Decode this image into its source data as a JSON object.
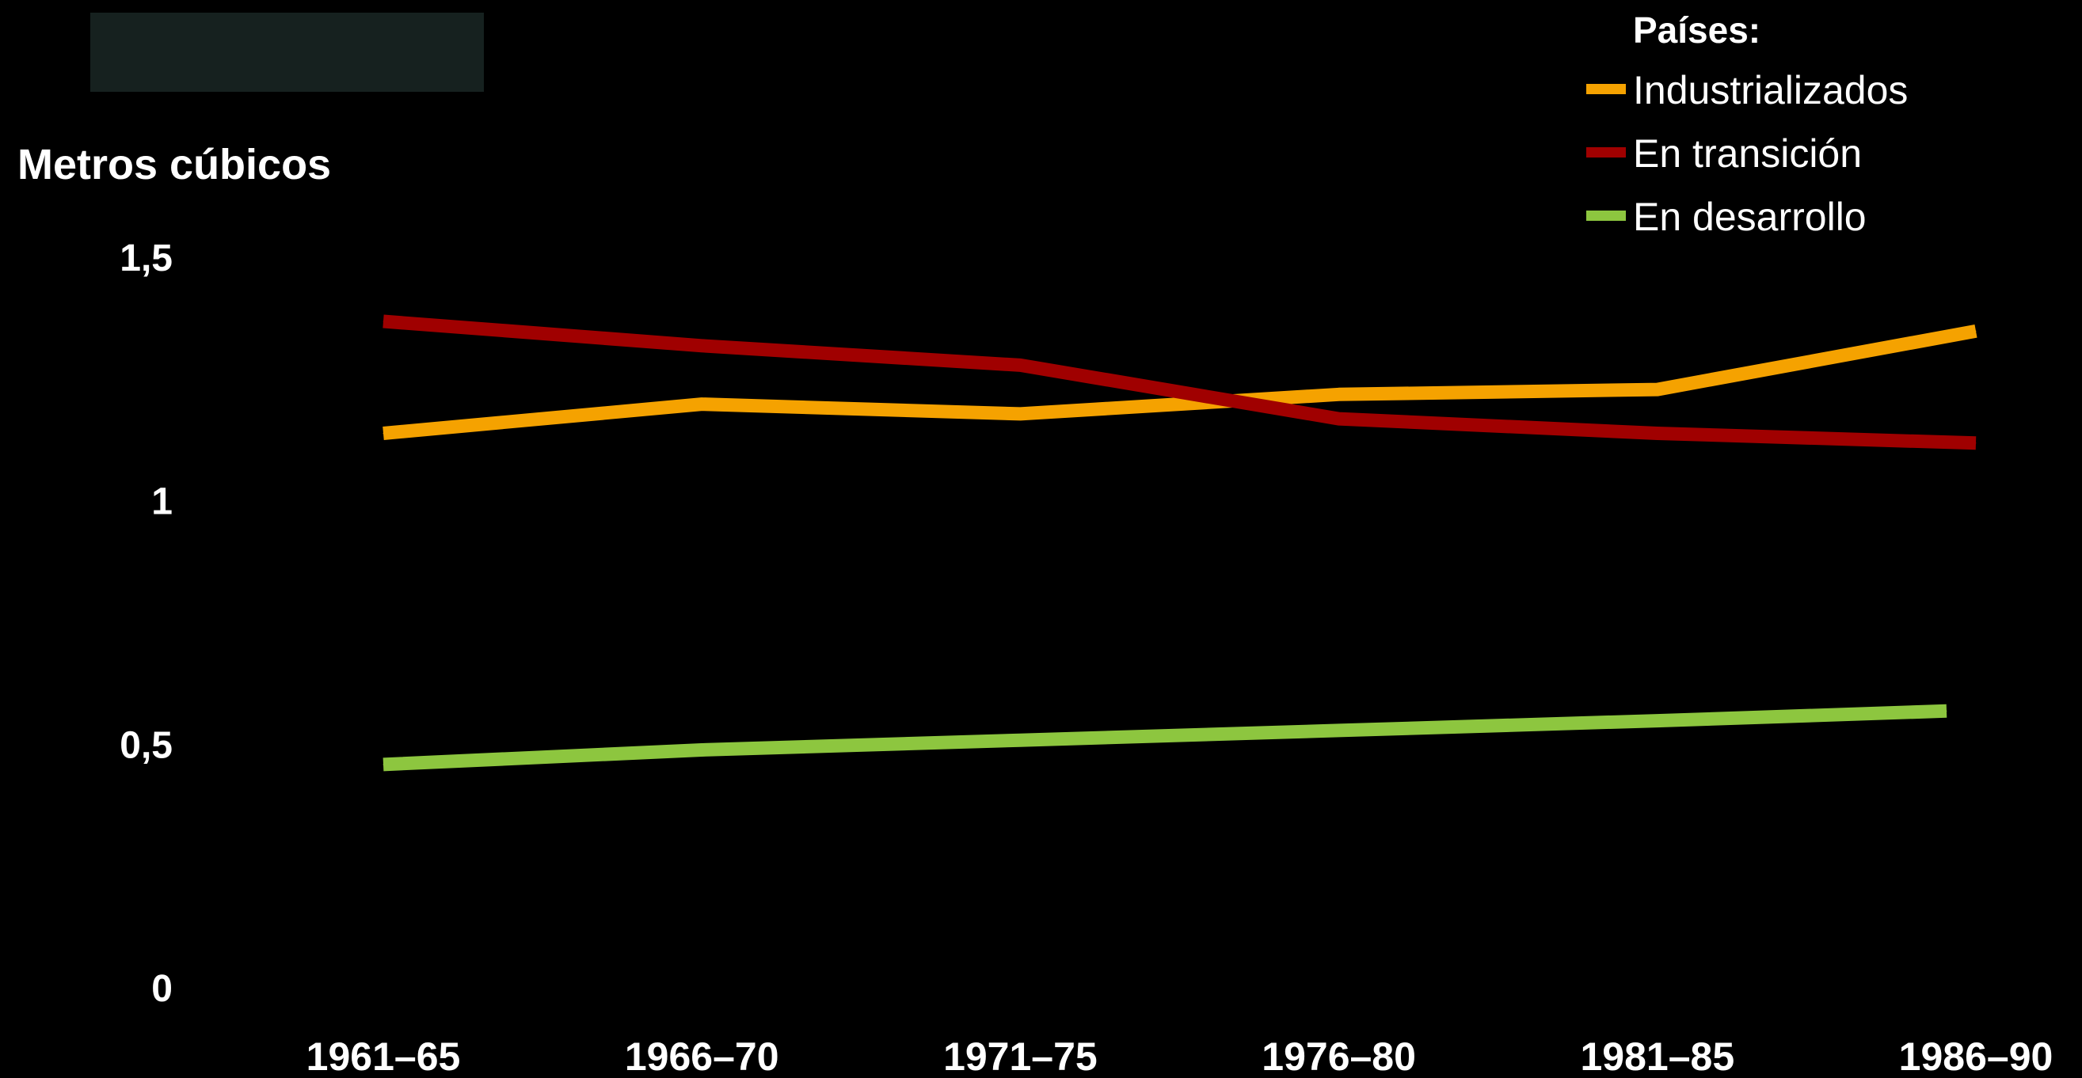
{
  "colors": {
    "background": "#000000",
    "text": "#ffffff",
    "placeholder_box": "#16211f"
  },
  "chart_data": {
    "type": "line",
    "title": "",
    "xlabel": "",
    "ylabel": "Metros cúbicos",
    "categories": [
      "1961–65",
      "1966–70",
      "1971–75",
      "1976–80",
      "1981–85",
      "1986–90"
    ],
    "y_ticks": [
      {
        "value": 0,
        "label": "0"
      },
      {
        "value": 0.5,
        "label": "0,5"
      },
      {
        "value": 1,
        "label": "1"
      },
      {
        "value": 1.5,
        "label": "1,5"
      }
    ],
    "ylim": [
      0,
      1.5
    ],
    "grid": false,
    "legend": {
      "title": "Países:",
      "placement": "top-right"
    },
    "series": [
      {
        "name": "Industrializados",
        "color": "#f5a200",
        "values": [
          1.14,
          1.2,
          1.18,
          1.22,
          1.23,
          1.35
        ]
      },
      {
        "name": "En transición",
        "color": "#a00000",
        "values": [
          1.37,
          1.32,
          1.28,
          1.17,
          1.14,
          1.12
        ]
      },
      {
        "name": "En desarrollo",
        "color": "#8dc63f",
        "values": [
          0.46,
          0.49,
          0.51,
          0.53,
          0.55,
          0.57
        ]
      }
    ]
  }
}
